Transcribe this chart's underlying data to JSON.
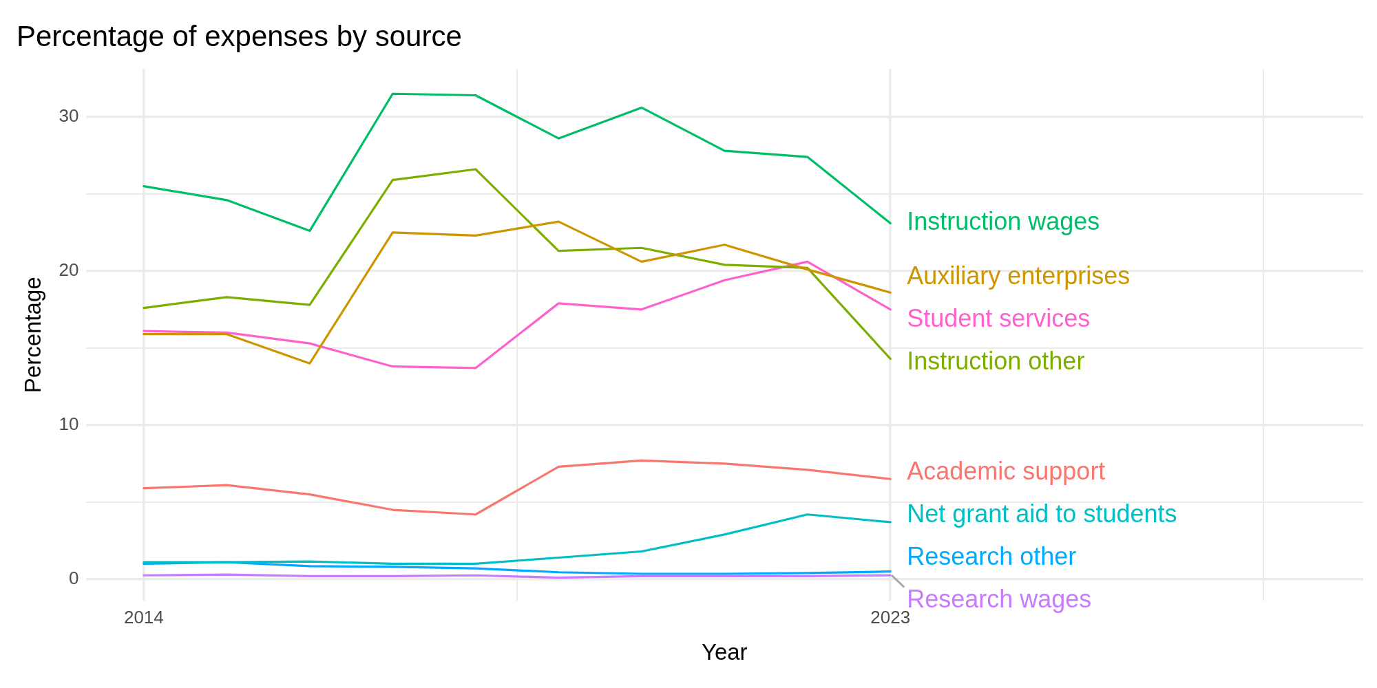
{
  "chart_data": {
    "type": "line",
    "title": "Percentage of expenses by source",
    "xlabel": "Year",
    "ylabel": "Percentage",
    "x": [
      2014,
      2015,
      2016,
      2017,
      2018,
      2019,
      2020,
      2021,
      2022,
      2023
    ],
    "xlim": [
      2013.3,
      2028.7
    ],
    "xticks": [
      2014,
      {
        "value": 2018.5,
        "label": null
      },
      2023,
      {
        "value": 2027.5,
        "label": null
      }
    ],
    "ylim": [
      -1.4,
      33.1
    ],
    "yticks": [
      0,
      {
        "value": 5,
        "label": null
      },
      10,
      {
        "value": 15,
        "label": null
      },
      20,
      {
        "value": 25,
        "label": null
      },
      30
    ],
    "grid": true,
    "legend": false,
    "marker": "none",
    "line_style": "solid",
    "series": [
      {
        "name": "Academic support",
        "color": "#f8766d",
        "values": [
          5.9,
          6.1,
          5.5,
          4.5,
          4.2,
          7.3,
          7.7,
          7.5,
          7.1,
          6.5
        ]
      },
      {
        "name": "Auxiliary enterprises",
        "color": "#cd9600",
        "values": [
          15.9,
          15.9,
          14.0,
          22.5,
          22.3,
          23.2,
          20.6,
          21.7,
          20.1,
          18.6
        ]
      },
      {
        "name": "Instruction other",
        "color": "#7cae00",
        "values": [
          17.6,
          18.3,
          17.8,
          25.9,
          26.6,
          21.3,
          21.5,
          20.4,
          20.2,
          14.3
        ]
      },
      {
        "name": "Instruction wages",
        "color": "#00be67",
        "values": [
          25.5,
          24.6,
          22.6,
          31.5,
          31.4,
          28.6,
          30.6,
          27.8,
          27.4,
          23.1
        ]
      },
      {
        "name": "Net grant aid to students",
        "color": "#00bfc4",
        "values": [
          1.1,
          1.1,
          1.15,
          1.0,
          1.0,
          1.4,
          1.8,
          2.9,
          4.2,
          3.7
        ]
      },
      {
        "name": "Research other",
        "color": "#00a9ff",
        "values": [
          1.0,
          1.1,
          0.85,
          0.8,
          0.7,
          0.45,
          0.35,
          0.35,
          0.4,
          0.5
        ]
      },
      {
        "name": "Research wages",
        "color": "#c77cff",
        "values": [
          0.25,
          0.3,
          0.2,
          0.2,
          0.25,
          0.1,
          0.2,
          0.2,
          0.2,
          0.25
        ]
      },
      {
        "name": "Student services",
        "color": "#ff61cc",
        "values": [
          16.1,
          16.0,
          15.3,
          13.8,
          13.7,
          17.9,
          17.5,
          19.4,
          20.6,
          17.5
        ]
      }
    ]
  }
}
